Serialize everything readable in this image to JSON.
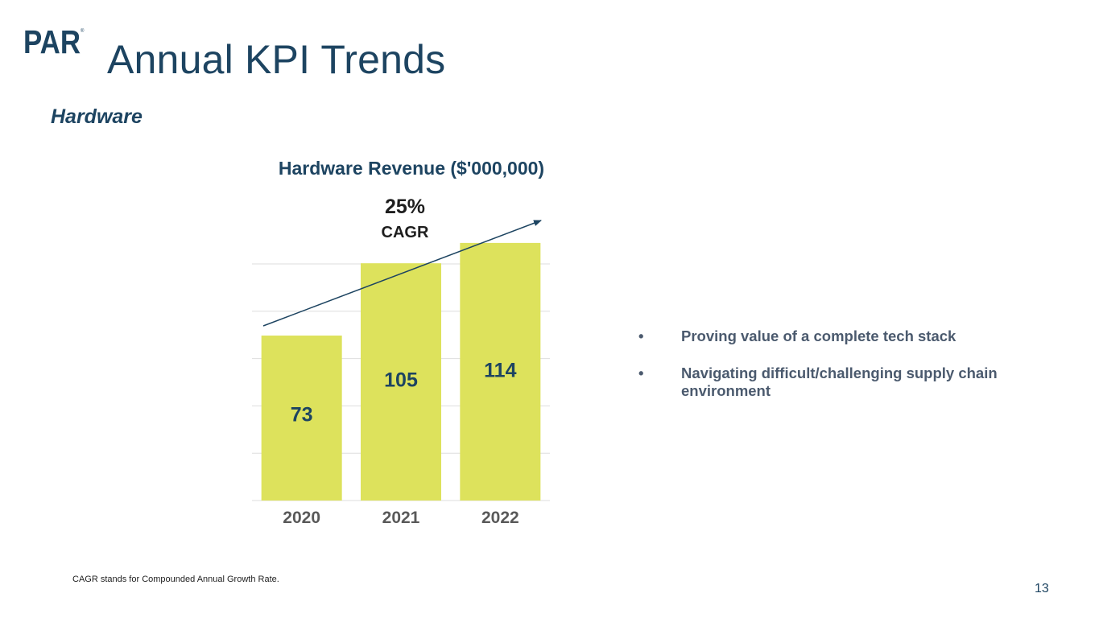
{
  "brand": {
    "logo_text": "PAR",
    "primary_color": "#1d4461",
    "bar_color": "#dde25c"
  },
  "header": {
    "title": "Annual KPI Trends",
    "subtitle": "Hardware"
  },
  "chart_data": {
    "type": "bar",
    "title": "Hardware Revenue ($'000,000)",
    "categories": [
      "2020",
      "2021",
      "2022"
    ],
    "values": [
      73,
      105,
      114
    ],
    "xlabel": "",
    "ylabel": "",
    "ylim": [
      0,
      125
    ],
    "grid": true,
    "legend": "none",
    "annotation": {
      "value": "25%",
      "label": "CAGR"
    }
  },
  "bullets": {
    "symbol": "•",
    "items": [
      "Proving value of a complete tech stack",
      "Navigating difficult/challenging supply chain environment"
    ]
  },
  "footer": {
    "footnote": "CAGR stands for Compounded Annual Growth Rate.",
    "page_number": "13"
  }
}
